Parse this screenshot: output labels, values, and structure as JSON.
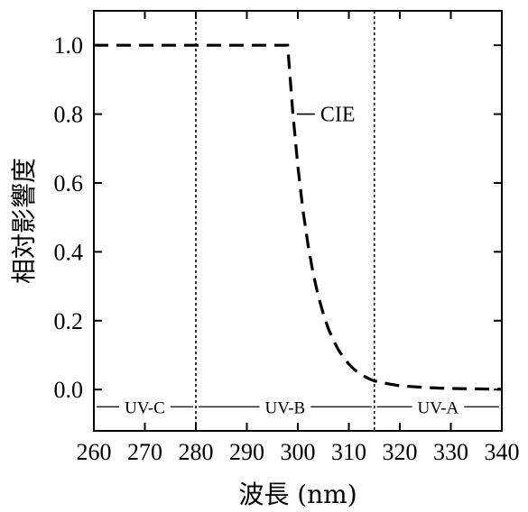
{
  "chart_data": {
    "type": "line",
    "xlabel": "波長 (nm)",
    "ylabel": "相対影響度",
    "xlim": [
      260,
      340
    ],
    "ylim": [
      -0.12,
      1.1
    ],
    "xticks": [
      260,
      270,
      280,
      290,
      300,
      310,
      320,
      330,
      340
    ],
    "xtick_labels": [
      "260",
      "270",
      "280",
      "290",
      "300",
      "310",
      "320",
      "330",
      "340"
    ],
    "yticks": [
      0.0,
      0.2,
      0.4,
      0.6,
      0.8,
      1.0
    ],
    "ytick_labels": [
      "0.0",
      "0.2",
      "0.4",
      "0.6",
      "0.8",
      "1.0"
    ],
    "series": [
      {
        "name": "CIE",
        "style": "dashed",
        "x": [
          260,
          298,
          299,
          300,
          301,
          302,
          303,
          304,
          305,
          306,
          307,
          308,
          309,
          310,
          311,
          312,
          313,
          314,
          315,
          316,
          318,
          320,
          325,
          330,
          335,
          340
        ],
        "y": [
          1.0,
          1.0,
          0.805,
          0.649,
          0.522,
          0.42,
          0.338,
          0.272,
          0.219,
          0.176,
          0.142,
          0.114,
          0.092,
          0.074,
          0.059,
          0.048,
          0.039,
          0.031,
          0.025,
          0.022,
          0.016,
          0.011,
          0.006,
          0.003,
          0.002,
          0.001
        ]
      }
    ],
    "annotation": {
      "text": "CIE",
      "x": 300.5,
      "y": 0.8
    },
    "vlines": [
      280,
      315
    ],
    "bands": [
      {
        "label": "UV-C",
        "from": 260,
        "to": 280
      },
      {
        "label": "UV-B",
        "from": 280,
        "to": 315
      },
      {
        "label": "UV-A",
        "from": 315,
        "to": 340
      }
    ],
    "band_y": -0.05,
    "grid": false
  }
}
